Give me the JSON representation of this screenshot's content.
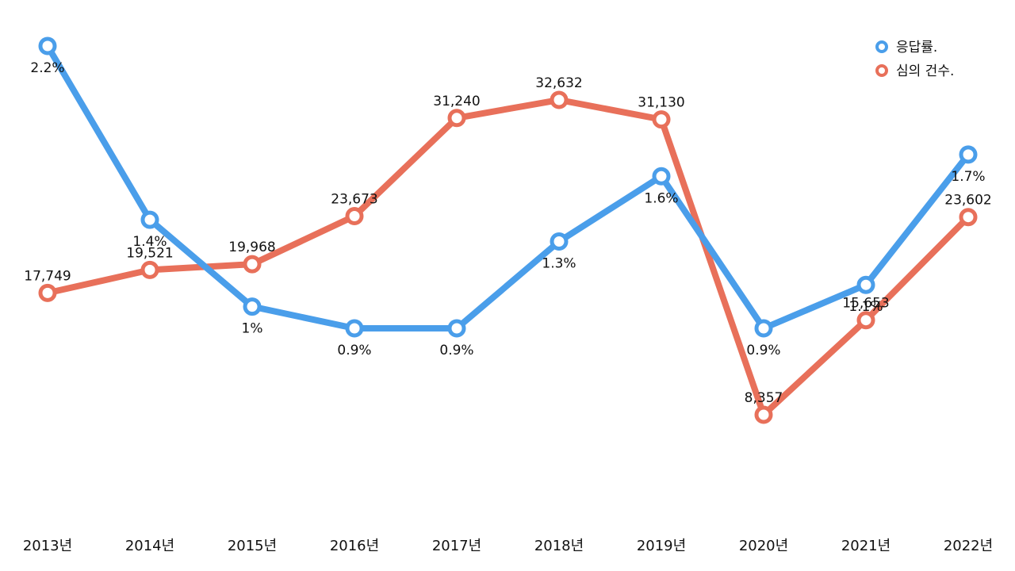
{
  "chart_data": {
    "type": "line",
    "title": "",
    "xlabel": "",
    "ylabel": "",
    "grid": false,
    "legend_position": "top-right",
    "categories": [
      "2013년",
      "2014년",
      "2015년",
      "2016년",
      "2017년",
      "2018년",
      "2019년",
      "2020년",
      "2021년",
      "2022년"
    ],
    "series": [
      {
        "name": "응답률.",
        "color": "#4A9EEA",
        "values": [
          2.2,
          1.4,
          1.0,
          0.9,
          0.9,
          1.3,
          1.6,
          0.9,
          1.1,
          1.7
        ],
        "labels": [
          "2.2%",
          "1.4%",
          "1%",
          "0.9%",
          "0.9%",
          "1.3%",
          "1.6%",
          "0.9%",
          "1.1%",
          "1.7%"
        ],
        "label_side": [
          "below",
          "below",
          "below",
          "below",
          "below",
          "below",
          "below",
          "below",
          "below",
          "below"
        ]
      },
      {
        "name": "심의 건수.",
        "color": "#E8705A",
        "values": [
          17749,
          19521,
          19968,
          23673,
          31240,
          32632,
          31130,
          8357,
          15653,
          23602
        ],
        "labels": [
          "17,749",
          "19,521",
          "19,968",
          "23,673",
          "31,240",
          "32,632",
          "31,130",
          "8,357",
          "15,653",
          "23,602"
        ],
        "label_side": [
          "above",
          "above",
          "above",
          "above",
          "above",
          "above",
          "above",
          "above",
          "above",
          "above"
        ]
      }
    ]
  }
}
